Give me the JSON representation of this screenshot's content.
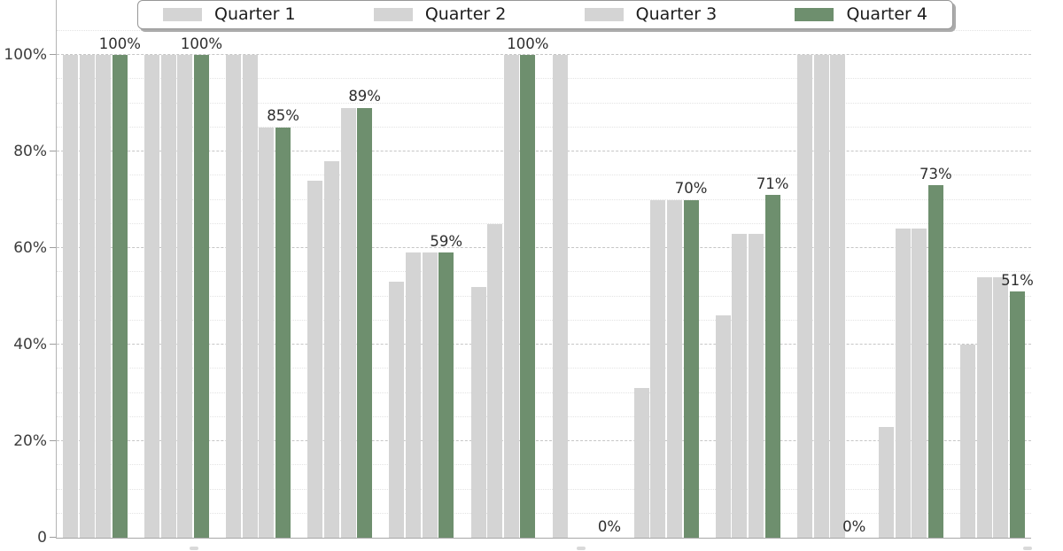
{
  "legend": {
    "items": [
      {
        "label": "Quarter 1",
        "color": "#d4d4d4"
      },
      {
        "label": "Quarter 2",
        "color": "#d4d4d4"
      },
      {
        "label": "Quarter 3",
        "color": "#d4d4d4"
      },
      {
        "label": "Quarter 4",
        "color": "#6e8f6e"
      }
    ]
  },
  "y_axis": {
    "ticks": [
      {
        "label": "100%",
        "value": 100
      },
      {
        "label": "80%",
        "value": 80
      },
      {
        "label": "60%",
        "value": 60
      },
      {
        "label": "40%",
        "value": 40
      },
      {
        "label": "20%",
        "value": 20
      },
      {
        "label": "0",
        "value": 0
      }
    ]
  },
  "chart_data": {
    "type": "bar",
    "title": "",
    "xlabel": "",
    "ylabel": "",
    "ylim": [
      0,
      111
    ],
    "yticks": [
      0,
      20,
      40,
      60,
      80,
      100
    ],
    "grid": "horizontal; major dashed every 20%, minor dotted every 5%",
    "legend_position": "top center, framed box with shadow",
    "n_groups": 12,
    "series": [
      {
        "name": "Quarter 1",
        "color": "#d4d4d4",
        "values": [
          100,
          100,
          100,
          74,
          53,
          52,
          100,
          31,
          46,
          100,
          23,
          40
        ]
      },
      {
        "name": "Quarter 2",
        "color": "#d4d4d4",
        "values": [
          100,
          100,
          100,
          78,
          59,
          65,
          0,
          70,
          63,
          100,
          64,
          54
        ]
      },
      {
        "name": "Quarter 3",
        "color": "#d4d4d4",
        "values": [
          100,
          100,
          85,
          89,
          59,
          100,
          0,
          70,
          63,
          100,
          64,
          54
        ]
      },
      {
        "name": "Quarter 4",
        "color": "#6e8f6e",
        "values": [
          100,
          100,
          85,
          89,
          59,
          100,
          0,
          70,
          71,
          0,
          73,
          51
        ]
      }
    ],
    "bar_labels_on": "Quarter 4",
    "bar_labels": [
      "100%",
      "100%",
      "85%",
      "89%",
      "59%",
      "100%",
      "0%",
      "70%",
      "71%",
      "0%",
      "73%",
      "51%"
    ]
  },
  "colors": {
    "bar_gray": "#d4d4d4",
    "bar_green": "#6e8f6e",
    "grid_major": "#c6c6c6",
    "grid_minor": "#e3e3e3",
    "axis_spine": "#a8a8a8",
    "text": "#2e2e2e",
    "background": "#ffffff"
  }
}
